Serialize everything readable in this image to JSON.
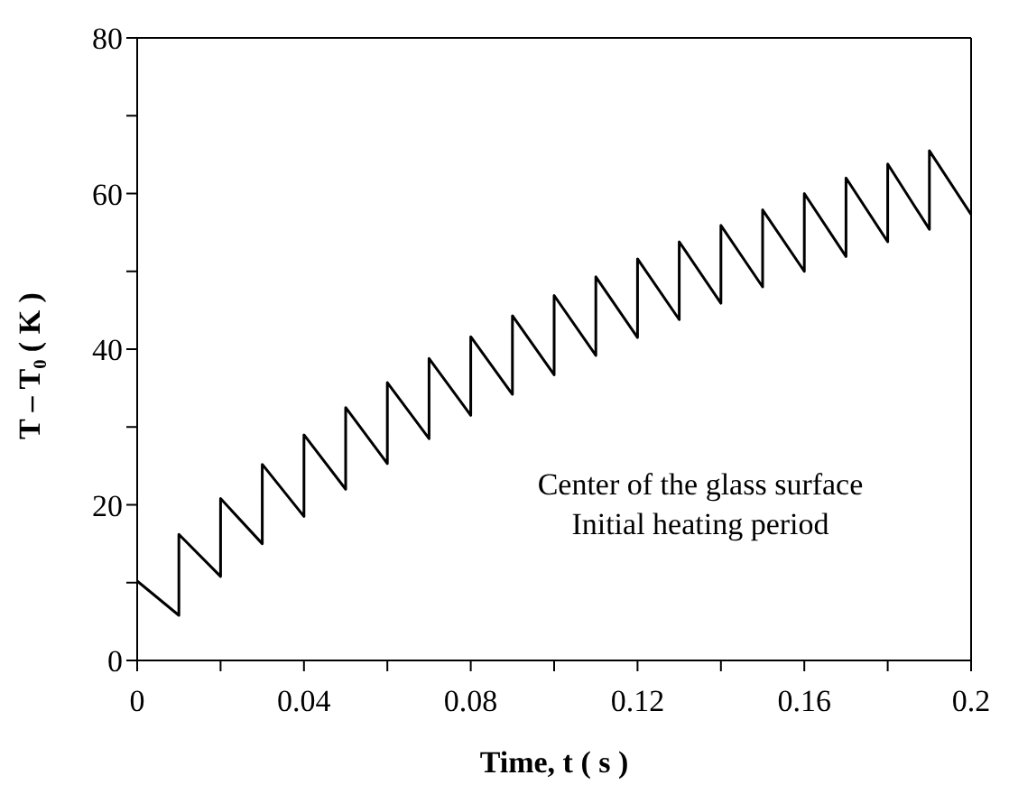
{
  "chart_data": {
    "type": "line",
    "xlabel": "Time, t ( s )",
    "ylabel": "T – T₀ ( K )",
    "annotations": [
      "Center of the glass surface",
      "Initial heating period"
    ],
    "series": [
      {
        "color": "#000000",
        "x": [
          0,
          0.01,
          0.01,
          0.02,
          0.02,
          0.03,
          0.03,
          0.04,
          0.04,
          0.05,
          0.05,
          0.06,
          0.06,
          0.07,
          0.07,
          0.08,
          0.08,
          0.09,
          0.09,
          0.1,
          0.1,
          0.11,
          0.11,
          0.12,
          0.12,
          0.13,
          0.13,
          0.14,
          0.14,
          0.15,
          0.15,
          0.16,
          0.16,
          0.17,
          0.17,
          0.18,
          0.18,
          0.19,
          0.19,
          0.2
        ],
        "values": [
          10.2,
          5.8,
          16.2,
          10.8,
          20.8,
          15,
          25.2,
          18.5,
          29,
          22,
          32.5,
          25.3,
          35.7,
          28.5,
          38.8,
          31.5,
          41.6,
          34.2,
          44.3,
          36.7,
          46.9,
          39.2,
          49.3,
          41.5,
          51.6,
          43.8,
          53.8,
          45.9,
          55.9,
          48,
          57.9,
          50,
          60,
          51.9,
          62,
          53.8,
          63.8,
          55.4,
          65.5,
          57.3
        ]
      }
    ],
    "xlim": [
      0,
      0.2
    ],
    "xticks": [
      0,
      {
        "value": 0.02,
        "label": null
      },
      0.04,
      {
        "value": 0.06,
        "label": null
      },
      0.08,
      {
        "value": 0.1,
        "label": null
      },
      0.12,
      {
        "value": 0.14,
        "label": null
      },
      0.16,
      {
        "value": 0.18,
        "label": null
      },
      0.2
    ],
    "ylim": [
      0,
      80
    ],
    "yticks": [
      0,
      {
        "value": 10,
        "label": null
      },
      20,
      {
        "value": 30,
        "label": null
      },
      40,
      {
        "value": 50,
        "label": null
      },
      60,
      {
        "value": 70,
        "label": null
      },
      80
    ],
    "grid": false,
    "legend": false,
    "marker": "none",
    "line_style": "solid"
  }
}
